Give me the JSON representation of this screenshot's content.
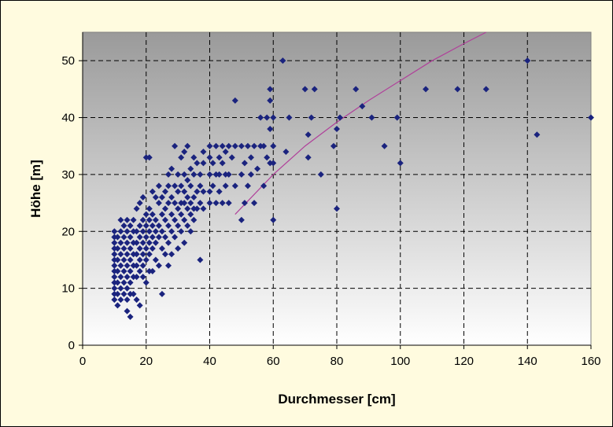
{
  "chart_data": {
    "type": "scatter",
    "title": "",
    "xlabel": "Durchmesser [cm]",
    "ylabel": "Höhe [m]",
    "xlim": [
      0,
      160
    ],
    "ylim": [
      0,
      55
    ],
    "xticks": [
      0,
      20,
      40,
      60,
      80,
      100,
      120,
      140,
      160
    ],
    "yticks": [
      0,
      10,
      20,
      30,
      40,
      50
    ],
    "grid": true,
    "grid_style": "dashed",
    "legend": "none",
    "background_gradient": [
      "#9a9a9a",
      "#ffffff"
    ],
    "colors": {
      "points": "#1a237e",
      "trend": "#b0409a"
    },
    "series": [
      {
        "points": [
          [
            10,
            8
          ],
          [
            10,
            9
          ],
          [
            10,
            10
          ],
          [
            10,
            11
          ],
          [
            10,
            12
          ],
          [
            10,
            13
          ],
          [
            10,
            14
          ],
          [
            10,
            15
          ],
          [
            10,
            16
          ],
          [
            10,
            17
          ],
          [
            10,
            18
          ],
          [
            10,
            19
          ],
          [
            10,
            20
          ],
          [
            11,
            7
          ],
          [
            11,
            9
          ],
          [
            11,
            11
          ],
          [
            11,
            13
          ],
          [
            11,
            15
          ],
          [
            11,
            17
          ],
          [
            11,
            19
          ],
          [
            12,
            8
          ],
          [
            12,
            10
          ],
          [
            12,
            12
          ],
          [
            12,
            14
          ],
          [
            12,
            16
          ],
          [
            12,
            18
          ],
          [
            12,
            20
          ],
          [
            12,
            22
          ],
          [
            13,
            9
          ],
          [
            13,
            11
          ],
          [
            13,
            13
          ],
          [
            13,
            15
          ],
          [
            13,
            17
          ],
          [
            13,
            19
          ],
          [
            13,
            21
          ],
          [
            14,
            6
          ],
          [
            14,
            8
          ],
          [
            14,
            10
          ],
          [
            14,
            12
          ],
          [
            14,
            14
          ],
          [
            14,
            16
          ],
          [
            14,
            18
          ],
          [
            14,
            20
          ],
          [
            14,
            22
          ],
          [
            15,
            5
          ],
          [
            15,
            9
          ],
          [
            15,
            11
          ],
          [
            15,
            13
          ],
          [
            15,
            15
          ],
          [
            15,
            17
          ],
          [
            15,
            19
          ],
          [
            15,
            21
          ],
          [
            16,
            9
          ],
          [
            16,
            12
          ],
          [
            16,
            14
          ],
          [
            16,
            16
          ],
          [
            16,
            18
          ],
          [
            16,
            20
          ],
          [
            16,
            22
          ],
          [
            17,
            8
          ],
          [
            17,
            12
          ],
          [
            17,
            14
          ],
          [
            17,
            16
          ],
          [
            17,
            18
          ],
          [
            17,
            20
          ],
          [
            17,
            24
          ],
          [
            18,
            7
          ],
          [
            18,
            13
          ],
          [
            18,
            15
          ],
          [
            18,
            17
          ],
          [
            18,
            19
          ],
          [
            18,
            21
          ],
          [
            18,
            25
          ],
          [
            19,
            12
          ],
          [
            19,
            14
          ],
          [
            19,
            16
          ],
          [
            19,
            18
          ],
          [
            19,
            20
          ],
          [
            19,
            22
          ],
          [
            19,
            26
          ],
          [
            20,
            11
          ],
          [
            20,
            15
          ],
          [
            20,
            17
          ],
          [
            20,
            19
          ],
          [
            20,
            21
          ],
          [
            20,
            23
          ],
          [
            20,
            33
          ],
          [
            21,
            13
          ],
          [
            21,
            16
          ],
          [
            21,
            18
          ],
          [
            21,
            20
          ],
          [
            21,
            22
          ],
          [
            21,
            24
          ],
          [
            21,
            33
          ],
          [
            22,
            13
          ],
          [
            22,
            17
          ],
          [
            22,
            19
          ],
          [
            22,
            21
          ],
          [
            22,
            23
          ],
          [
            22,
            27
          ],
          [
            23,
            15
          ],
          [
            23,
            18
          ],
          [
            23,
            20
          ],
          [
            23,
            22
          ],
          [
            23,
            26
          ],
          [
            24,
            14
          ],
          [
            24,
            19
          ],
          [
            24,
            21
          ],
          [
            24,
            25
          ],
          [
            24,
            28
          ],
          [
            25,
            9
          ],
          [
            25,
            17
          ],
          [
            25,
            20
          ],
          [
            25,
            23
          ],
          [
            25,
            26
          ],
          [
            26,
            16
          ],
          [
            26,
            19
          ],
          [
            26,
            22
          ],
          [
            26,
            24
          ],
          [
            26,
            27
          ],
          [
            27,
            14
          ],
          [
            27,
            18
          ],
          [
            27,
            21
          ],
          [
            27,
            25
          ],
          [
            27,
            28
          ],
          [
            27,
            30
          ],
          [
            28,
            16
          ],
          [
            28,
            20
          ],
          [
            28,
            23
          ],
          [
            28,
            26
          ],
          [
            28,
            31
          ],
          [
            29,
            19
          ],
          [
            29,
            22
          ],
          [
            29,
            25
          ],
          [
            29,
            28
          ],
          [
            29,
            35
          ],
          [
            30,
            17
          ],
          [
            30,
            21
          ],
          [
            30,
            24
          ],
          [
            30,
            27
          ],
          [
            30,
            30
          ],
          [
            31,
            20
          ],
          [
            31,
            23
          ],
          [
            31,
            25
          ],
          [
            31,
            28
          ],
          [
            31,
            33
          ],
          [
            32,
            18
          ],
          [
            32,
            22
          ],
          [
            32,
            25
          ],
          [
            32,
            27
          ],
          [
            32,
            30
          ],
          [
            32,
            34
          ],
          [
            33,
            21
          ],
          [
            33,
            24
          ],
          [
            33,
            26
          ],
          [
            33,
            29
          ],
          [
            33,
            35
          ],
          [
            34,
            20
          ],
          [
            34,
            23
          ],
          [
            34,
            25
          ],
          [
            34,
            28
          ],
          [
            34,
            31
          ],
          [
            35,
            22
          ],
          [
            35,
            24
          ],
          [
            35,
            26
          ],
          [
            35,
            30
          ],
          [
            35,
            33
          ],
          [
            36,
            24
          ],
          [
            36,
            27
          ],
          [
            36,
            32
          ],
          [
            37,
            15
          ],
          [
            37,
            25
          ],
          [
            37,
            28
          ],
          [
            37,
            30
          ],
          [
            38,
            24
          ],
          [
            38,
            27
          ],
          [
            38,
            32
          ],
          [
            38,
            34
          ],
          [
            40,
            25
          ],
          [
            40,
            27
          ],
          [
            40,
            30
          ],
          [
            40,
            33
          ],
          [
            40,
            35
          ],
          [
            41,
            28
          ],
          [
            41,
            32
          ],
          [
            42,
            25
          ],
          [
            42,
            30
          ],
          [
            42,
            35
          ],
          [
            43,
            27
          ],
          [
            43,
            30
          ],
          [
            43,
            33
          ],
          [
            44,
            25
          ],
          [
            44,
            32
          ],
          [
            44,
            35
          ],
          [
            45,
            28
          ],
          [
            45,
            30
          ],
          [
            45,
            34
          ],
          [
            46,
            25
          ],
          [
            46,
            30
          ],
          [
            46,
            35
          ],
          [
            47,
            33
          ],
          [
            48,
            43
          ],
          [
            48,
            35
          ],
          [
            48,
            28
          ],
          [
            50,
            22
          ],
          [
            50,
            30
          ],
          [
            50,
            35
          ],
          [
            51,
            25
          ],
          [
            51,
            32
          ],
          [
            52,
            28
          ],
          [
            52,
            35
          ],
          [
            53,
            30
          ],
          [
            53,
            33
          ],
          [
            54,
            35
          ],
          [
            54,
            25
          ],
          [
            55,
            31
          ],
          [
            56,
            35
          ],
          [
            56,
            40
          ],
          [
            57,
            28
          ],
          [
            57,
            35
          ],
          [
            58,
            33
          ],
          [
            58,
            40
          ],
          [
            59,
            32
          ],
          [
            59,
            43
          ],
          [
            59,
            45
          ],
          [
            59,
            38
          ],
          [
            60,
            22
          ],
          [
            60,
            32
          ],
          [
            60,
            35
          ],
          [
            60,
            40
          ],
          [
            63,
            50
          ],
          [
            64,
            34
          ],
          [
            65,
            40
          ],
          [
            70,
            45
          ],
          [
            71,
            37
          ],
          [
            71,
            33
          ],
          [
            72,
            40
          ],
          [
            73,
            45
          ],
          [
            75,
            30
          ],
          [
            79,
            35
          ],
          [
            80,
            24
          ],
          [
            80,
            38
          ],
          [
            81,
            40
          ],
          [
            86,
            45
          ],
          [
            88,
            42
          ],
          [
            91,
            40
          ],
          [
            95,
            35
          ],
          [
            99,
            40
          ],
          [
            100,
            32
          ],
          [
            108,
            45
          ],
          [
            118,
            45
          ],
          [
            127,
            45
          ],
          [
            140,
            50
          ],
          [
            143,
            37
          ],
          [
            160,
            40
          ]
        ]
      }
    ],
    "trendline": [
      [
        48,
        23
      ],
      [
        60,
        30
      ],
      [
        70,
        35
      ],
      [
        80,
        39.2
      ],
      [
        90,
        43
      ],
      [
        100,
        46.5
      ],
      [
        110,
        50
      ],
      [
        120,
        53
      ],
      [
        127,
        55
      ]
    ]
  }
}
